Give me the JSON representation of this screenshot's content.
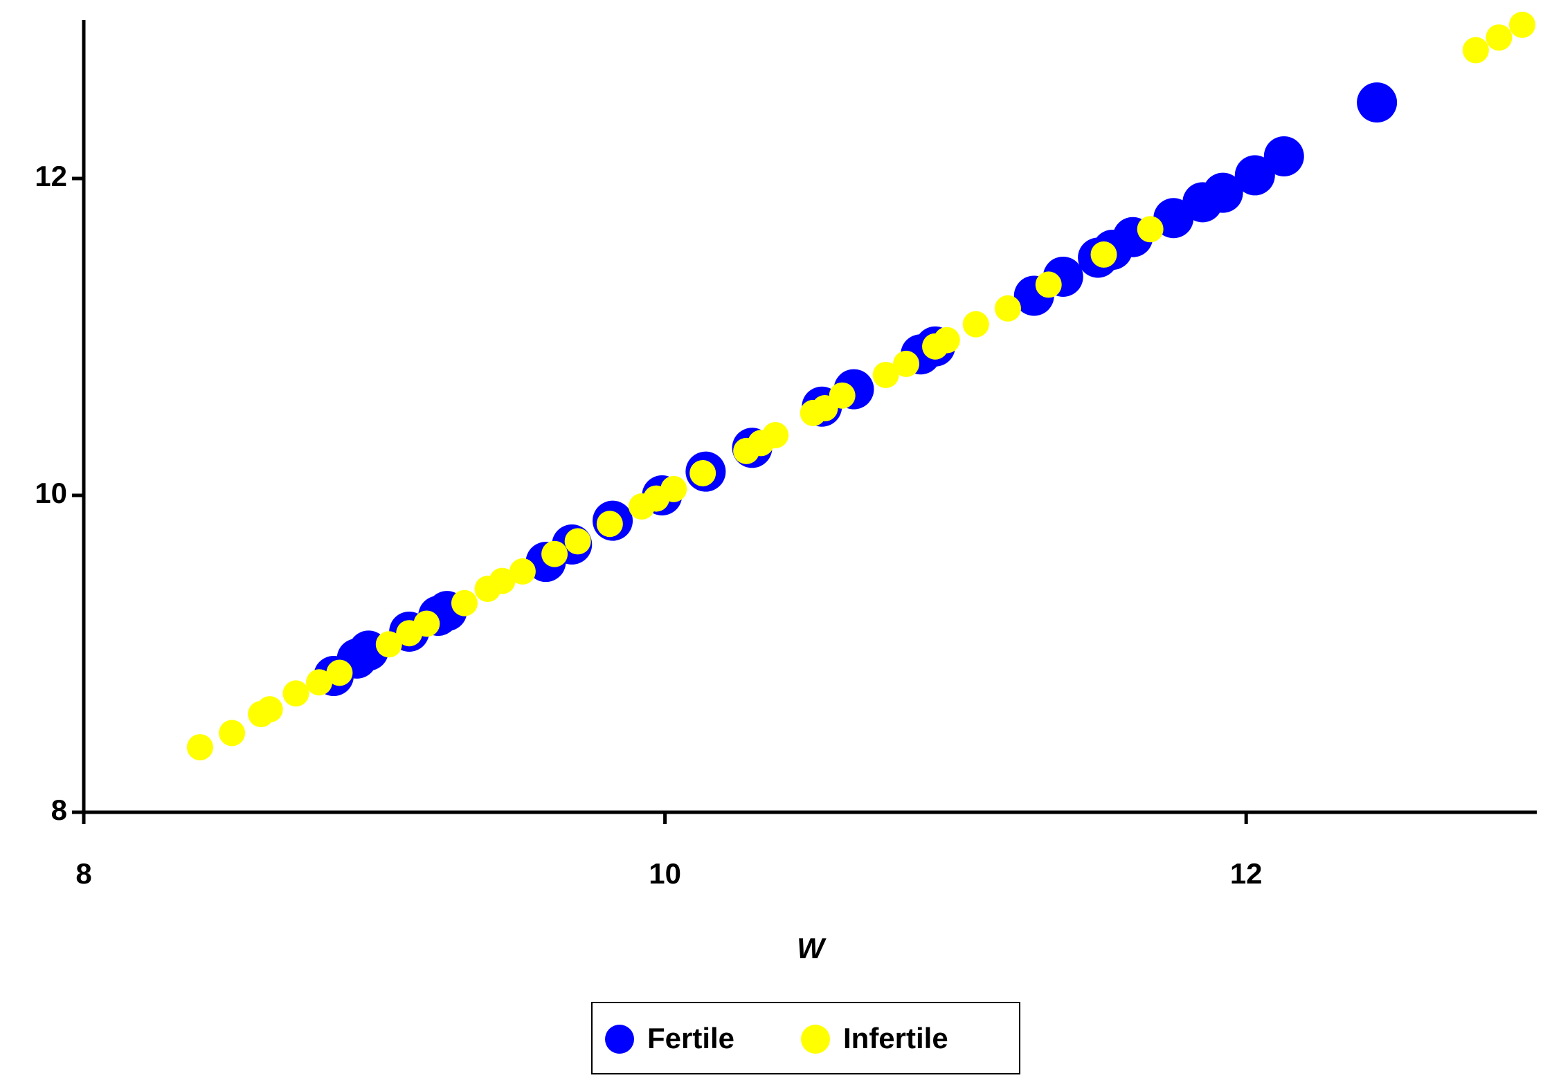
{
  "chart_data": {
    "type": "scatter",
    "x_label": "W",
    "xlim": [
      8,
      13
    ],
    "ylim": [
      8,
      13
    ],
    "xticks": [
      8,
      10,
      12
    ],
    "yticks": [
      8,
      10,
      12
    ],
    "legend": "bottom",
    "series": [
      {
        "name": "Fertile",
        "color": "#0000ff",
        "x": [
          8.86,
          8.94,
          8.98,
          9.12,
          9.22,
          9.25,
          9.59,
          9.68,
          9.82,
          9.99,
          10.14,
          10.3,
          10.54,
          10.65,
          10.88,
          10.93,
          11.27,
          11.37,
          11.49,
          11.54,
          11.61,
          11.75,
          11.85,
          11.92,
          12.03,
          12.13,
          12.45
        ],
        "values": [
          8.86,
          8.97,
          9.02,
          9.14,
          9.24,
          9.27,
          9.58,
          9.69,
          9.84,
          10.0,
          10.15,
          10.3,
          10.56,
          10.67,
          10.89,
          10.94,
          11.26,
          11.38,
          11.5,
          11.55,
          11.63,
          11.75,
          11.85,
          11.91,
          12.02,
          12.14,
          12.48
        ]
      },
      {
        "name": "Infertile",
        "color": "#ffff00",
        "x": [
          8.4,
          8.51,
          8.61,
          8.64,
          8.73,
          8.81,
          8.88,
          9.05,
          9.12,
          9.18,
          9.31,
          9.39,
          9.44,
          9.51,
          9.62,
          9.7,
          9.81,
          9.92,
          9.97,
          10.03,
          10.13,
          10.28,
          10.33,
          10.38,
          10.51,
          10.55,
          10.61,
          10.76,
          10.83,
          10.93,
          10.97,
          11.07,
          11.18,
          11.32,
          11.51,
          11.67,
          12.79,
          12.87,
          12.95
        ],
        "values": [
          8.41,
          8.5,
          8.62,
          8.65,
          8.75,
          8.82,
          8.88,
          9.06,
          9.13,
          9.19,
          9.32,
          9.41,
          9.46,
          9.52,
          9.63,
          9.71,
          9.82,
          9.93,
          9.98,
          10.04,
          10.14,
          10.28,
          10.33,
          10.38,
          10.52,
          10.55,
          10.63,
          10.76,
          10.83,
          10.94,
          10.98,
          11.08,
          11.18,
          11.33,
          11.52,
          11.68,
          12.81,
          12.89,
          12.97
        ]
      }
    ]
  }
}
